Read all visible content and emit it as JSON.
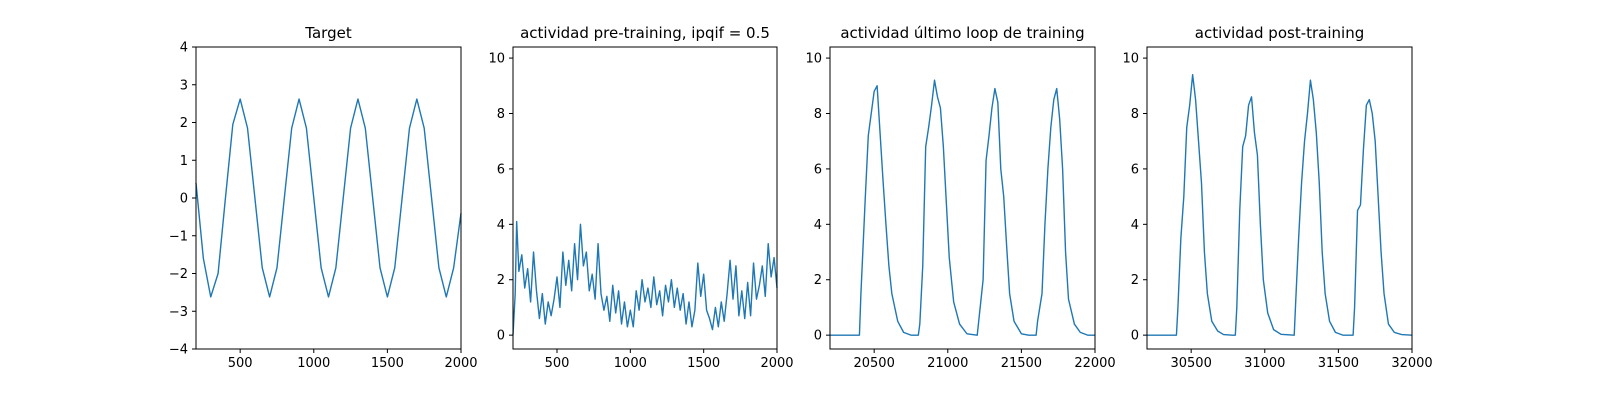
{
  "figure": {
    "line_color": "#1f77b4"
  },
  "chart_data": [
    {
      "type": "line",
      "title": "Target",
      "xlabel": "",
      "ylabel": "",
      "xlim": [
        200,
        2000
      ],
      "ylim": [
        -4,
        4
      ],
      "xticks": [
        500,
        1000,
        1500,
        2000
      ],
      "yticks": [
        -4,
        -3,
        -2,
        -1,
        0,
        1,
        2,
        3,
        4
      ],
      "grid": false,
      "series": [
        {
          "x": [
            200,
            250,
            300,
            350,
            400,
            450,
            500,
            550,
            600,
            650,
            700,
            750,
            800,
            850,
            900,
            950,
            1000,
            1050,
            1100,
            1150,
            1200,
            1250,
            1300,
            1350,
            1400,
            1450,
            1500,
            1550,
            1600,
            1650,
            1700,
            1750,
            1800,
            1850,
            1900,
            1950,
            2000
          ],
          "y": [
            0.4,
            -1.6,
            -2.62,
            -2.0,
            0.0,
            1.95,
            2.62,
            1.85,
            0.0,
            -1.85,
            -2.62,
            -1.85,
            0.0,
            1.85,
            2.62,
            1.85,
            0.0,
            -1.85,
            -2.62,
            -1.85,
            0.0,
            1.85,
            2.62,
            1.85,
            0.0,
            -1.85,
            -2.62,
            -1.85,
            0.0,
            1.85,
            2.62,
            1.85,
            0.0,
            -1.85,
            -2.62,
            -1.85,
            -0.4
          ]
        }
      ]
    },
    {
      "type": "line",
      "title": "actividad pre-training, ipqif = 0.5",
      "xlabel": "",
      "ylabel": "",
      "xlim": [
        200,
        2000
      ],
      "ylim": [
        -0.5,
        10.4
      ],
      "xticks": [
        500,
        1000,
        1500,
        2000
      ],
      "yticks": [
        0,
        2,
        4,
        6,
        8,
        10
      ],
      "grid": false,
      "series": [
        {
          "x": [
            200,
            215,
            225,
            240,
            260,
            280,
            300,
            320,
            340,
            360,
            380,
            400,
            420,
            440,
            460,
            480,
            500,
            520,
            540,
            560,
            580,
            600,
            620,
            640,
            660,
            680,
            700,
            720,
            740,
            760,
            780,
            800,
            820,
            840,
            860,
            880,
            900,
            920,
            940,
            960,
            980,
            1000,
            1020,
            1040,
            1060,
            1080,
            1100,
            1120,
            1140,
            1160,
            1180,
            1200,
            1220,
            1240,
            1260,
            1280,
            1300,
            1320,
            1340,
            1360,
            1380,
            1400,
            1420,
            1440,
            1460,
            1480,
            1500,
            1520,
            1540,
            1560,
            1580,
            1600,
            1620,
            1640,
            1660,
            1680,
            1700,
            1720,
            1740,
            1760,
            1780,
            1800,
            1820,
            1840,
            1860,
            1880,
            1900,
            1920,
            1940,
            1960,
            1980,
            2000
          ],
          "y": [
            0.0,
            1.5,
            4.1,
            2.3,
            2.9,
            1.7,
            2.4,
            1.2,
            3.0,
            1.6,
            0.6,
            1.5,
            0.4,
            1.2,
            0.7,
            1.3,
            2.1,
            1.0,
            3.0,
            1.8,
            2.7,
            1.6,
            3.3,
            2.0,
            4.0,
            2.5,
            3.0,
            1.6,
            2.2,
            1.3,
            3.3,
            1.5,
            0.9,
            1.4,
            0.5,
            1.8,
            0.8,
            1.6,
            0.4,
            1.2,
            0.3,
            0.9,
            0.3,
            1.6,
            0.9,
            2.0,
            1.2,
            1.7,
            1.0,
            2.1,
            1.1,
            1.6,
            0.7,
            1.8,
            1.2,
            2.0,
            1.0,
            1.7,
            0.9,
            1.5,
            0.4,
            1.2,
            0.3,
            0.9,
            2.6,
            1.4,
            2.2,
            0.9,
            0.6,
            0.2,
            1.0,
            0.3,
            1.2,
            0.5,
            1.5,
            2.7,
            1.3,
            2.5,
            0.7,
            1.6,
            0.6,
            1.9,
            0.7,
            2.6,
            1.3,
            1.8,
            2.5,
            1.4,
            3.3,
            2.1,
            2.8,
            1.7
          ]
        }
      ]
    },
    {
      "type": "line",
      "title": "actividad último loop de training",
      "xlabel": "",
      "ylabel": "",
      "xlim": [
        20200,
        22000
      ],
      "ylim": [
        -0.5,
        10.4
      ],
      "xticks": [
        20500,
        21000,
        21500,
        22000
      ],
      "yticks": [
        0,
        2,
        4,
        6,
        8,
        10
      ],
      "grid": false,
      "series": [
        {
          "x": [
            20200,
            20400,
            20410,
            20440,
            20460,
            20480,
            20500,
            20520,
            20540,
            20560,
            20580,
            20600,
            20620,
            20660,
            20700,
            20750,
            20800,
            20810,
            20830,
            20850,
            20870,
            20890,
            20910,
            20930,
            20950,
            20970,
            20990,
            21010,
            21040,
            21080,
            21130,
            21200,
            21210,
            21240,
            21260,
            21280,
            21300,
            21320,
            21340,
            21360,
            21380,
            21400,
            21420,
            21450,
            21500,
            21550,
            21600,
            21610,
            21640,
            21660,
            21680,
            21700,
            21720,
            21740,
            21760,
            21780,
            21800,
            21820,
            21860,
            21900,
            21950,
            22000
          ],
          "y": [
            0.0,
            0.0,
            1.5,
            5.0,
            7.2,
            8.0,
            8.8,
            9.0,
            7.3,
            5.6,
            4.0,
            2.5,
            1.5,
            0.5,
            0.1,
            0.0,
            0.0,
            0.4,
            2.5,
            6.8,
            7.5,
            8.3,
            9.2,
            8.6,
            8.2,
            6.8,
            4.8,
            2.8,
            1.2,
            0.4,
            0.05,
            0.0,
            0.5,
            2.0,
            6.3,
            7.2,
            8.2,
            8.9,
            8.4,
            6.0,
            5.0,
            3.2,
            1.5,
            0.5,
            0.05,
            0.0,
            0.0,
            0.5,
            1.5,
            4.0,
            6.0,
            7.5,
            8.5,
            8.9,
            7.8,
            6.0,
            3.0,
            1.3,
            0.4,
            0.1,
            0.0,
            0.0
          ]
        }
      ]
    },
    {
      "type": "line",
      "title": "actividad post-training",
      "xlabel": "",
      "ylabel": "",
      "xlim": [
        30200,
        32000
      ],
      "ylim": [
        -0.5,
        10.4
      ],
      "xticks": [
        30500,
        31000,
        31500,
        32000
      ],
      "yticks": [
        0,
        2,
        4,
        6,
        8,
        10
      ],
      "grid": false,
      "series": [
        {
          "x": [
            30200,
            30400,
            30410,
            30430,
            30450,
            30470,
            30490,
            30510,
            30530,
            30550,
            30570,
            30590,
            30610,
            30640,
            30680,
            30720,
            30780,
            30800,
            30810,
            30830,
            30850,
            30870,
            30890,
            30910,
            30930,
            30950,
            30970,
            30990,
            31020,
            31060,
            31110,
            31200,
            31210,
            31230,
            31250,
            31270,
            31290,
            31310,
            31330,
            31350,
            31370,
            31390,
            31410,
            31440,
            31480,
            31530,
            31600,
            31610,
            31630,
            31650,
            31670,
            31690,
            31710,
            31730,
            31750,
            31770,
            31790,
            31810,
            31840,
            31880,
            31930,
            32000
          ],
          "y": [
            0.0,
            0.0,
            1.0,
            3.5,
            5.0,
            7.5,
            8.3,
            9.4,
            8.5,
            7.0,
            5.5,
            3.0,
            1.5,
            0.5,
            0.15,
            0.02,
            0.0,
            0.0,
            1.0,
            4.5,
            6.8,
            7.2,
            8.3,
            8.6,
            7.3,
            6.5,
            4.0,
            2.0,
            0.8,
            0.2,
            0.03,
            0.0,
            1.2,
            3.5,
            5.5,
            7.0,
            8.0,
            9.2,
            8.5,
            7.3,
            5.5,
            3.0,
            1.5,
            0.5,
            0.1,
            0.0,
            0.0,
            1.0,
            4.5,
            4.7,
            6.7,
            8.3,
            8.5,
            8.0,
            7.0,
            5.0,
            3.0,
            1.5,
            0.4,
            0.1,
            0.02,
            0.0
          ]
        }
      ]
    }
  ]
}
